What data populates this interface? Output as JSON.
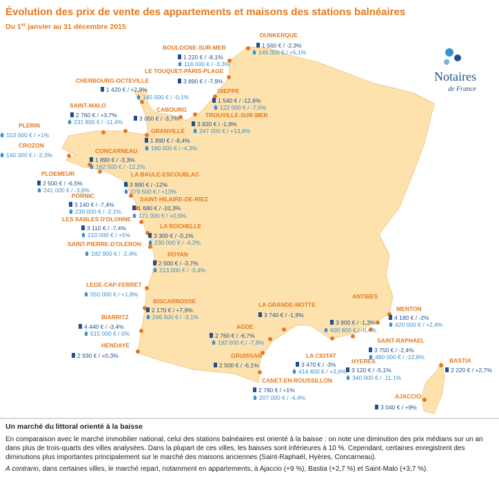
{
  "header": {
    "title": "Évolution des prix de vente des appartements et maisons des stations balnéaires",
    "subtitle_start": "Du 1",
    "subtitle_sup": "er",
    "subtitle_end": " janvier au 31 décembre  2015"
  },
  "logo": {
    "name": "Notaires",
    "sub": "de France"
  },
  "stations": [
    {
      "name": "DUNKERQUE",
      "apartment": "1 560 € / -2,3%",
      "house": "145 000 € / +5,1%"
    },
    {
      "name": "BOULOGNE-SUR-MER",
      "apartment": "1 220 € / -8,1%",
      "house": "116 000 € / -3,3%"
    },
    {
      "name": "LE TOUQUET-PARIS-PLAGE",
      "apartment": "3 890 € / -7,9%"
    },
    {
      "name": "CHERBOURG-OCTEVILLE",
      "apartment": "1 420 € / +2,9%",
      "house": "145 000 € / -0,1%"
    },
    {
      "name": "DIEPPE",
      "apartment": "1 540 € / -12,6%",
      "house": "122 000 € / -7,5%"
    },
    {
      "name": "SAINT-MALO",
      "apartment": "2 760 € / +3,7%",
      "house": "231 800 € / -11,4%"
    },
    {
      "name": "CABOURG",
      "apartment": "3 050 € / -3,7%"
    },
    {
      "name": "TROUVILLE-SUR-MER",
      "apartment": "3 820 € / -1,9%",
      "house": "247 000 € / +13,6%"
    },
    {
      "name": "PLERIN",
      "house": "153 000 € / +1%"
    },
    {
      "name": "GRANVILLE",
      "apartment": "1 890 € / -8,4%",
      "house": "180 000 € / -4,3%"
    },
    {
      "name": "CROZON",
      "house": "140 000 € / -2,3%"
    },
    {
      "name": "CONCARNEAU",
      "apartment": "1 890 € / -3,3%",
      "house": "162 500 € / -12,2%"
    },
    {
      "name": "PLOEMEUR",
      "apartment": "2 500 € / -6,5%",
      "house": "241 000 € / -3,6%"
    },
    {
      "name": "LA BAULE-ESCOUBLAC",
      "apartment": "3 990 € / -12%",
      "house": "379 500 € / +13%"
    },
    {
      "name": "PORNIC",
      "apartment": "3 140 € / -7,4%",
      "house": "230 000 € / -2,1%"
    },
    {
      "name": "SAINT-HILAIRE-DE-RIEZ",
      "apartment": "1 680 € / -10,3%",
      "house": "171 000 € / +0,9%"
    },
    {
      "name": "LES SABLES D'OLONNE",
      "apartment": "3 110 € / -7,4%",
      "house": "210 000 € / +5%"
    },
    {
      "name": "LA ROCHELLE",
      "apartment": "3 300 € / -0,1%",
      "house": "230 000 € / -4,2%"
    },
    {
      "name": "SAINT-PIERRE-D'OLERON",
      "house": "182 900 € / -2,4%"
    },
    {
      "name": "ROYAN",
      "apartment": "2 500 € / -3,7%",
      "house": "213 000 € / -3,4%"
    },
    {
      "name": "LEGE-CAP-FERRET",
      "house": "550 000 € / +1,8%"
    },
    {
      "name": "BISCARROSSE",
      "apartment": "2 170 € / +7,9%",
      "house": "246 500 € / -3,1%"
    },
    {
      "name": "BIARRITZ",
      "apartment": "4 440 € / -3,4%",
      "house": "515 000 € / 0%"
    },
    {
      "name": "HENDAYE",
      "apartment": "2 930 € / +0,3%"
    },
    {
      "name": "LA GRANDE-MOTTE",
      "apartment": "3 740 € / -1,9%"
    },
    {
      "name": "AGDE",
      "apartment": "2 760 € / -6,7%",
      "house": "192 000 € / -7,8%"
    },
    {
      "name": "GRUISSAN",
      "apartment": "2 500 € / -6,1%"
    },
    {
      "name": "CANET-EN-ROUSSILLON",
      "apartment": "2 780 € / +1%",
      "house": "207 000 € / -4,4%"
    },
    {
      "name": "ANTIBES",
      "apartment": "3 900 € / -1,3%",
      "house": "600 800 € / -0,4%"
    },
    {
      "name": "MENTON",
      "apartment": "4 180 € / -2%",
      "house": "420 000 € / +2,4%"
    },
    {
      "name": "SAINT-RAPHAEL",
      "apartment": "3 750 € / -2,4%",
      "house": "480 000 € / -12,8%"
    },
    {
      "name": "LA CIOTAT",
      "apartment": "3 470 € / -3%",
      "house": "414 400 € / +3,6%"
    },
    {
      "name": "HYERES",
      "apartment": "3 120 € / -5,1%",
      "house": "340 000 € / -11,1%"
    },
    {
      "name": "BASTIA",
      "apartment": "2 220 € / +2,7%"
    },
    {
      "name": "AJACCIO",
      "apartment": "3 040 € / +9%"
    }
  ],
  "footer": {
    "heading": "Un marché du littoral orienté à la baisse",
    "paragraph1": "En comparaison avec le marché immobilier national, celui des stations balnéaires est orienté à la baisse : on note une diminution des prix médians sur un an dans plus de trois-quarts des villes analysées. Dans la plupart de ces villes, les baisses sont inférieures à 10 %. Cependant, certaines enregistrent des diminutions plus importantes principalement sur le marché des maisons anciennes (Saint-Raphaël, Hyères, Concarneau).",
    "paragraph2_italic": "A contrario",
    "paragraph2_rest": ", dans certaines villes, le marché repart, notamment en appartements, à Ajaccio (+9 %), Bastia (+2,7 %) et Saint-Malo (+3,7 %)."
  }
}
